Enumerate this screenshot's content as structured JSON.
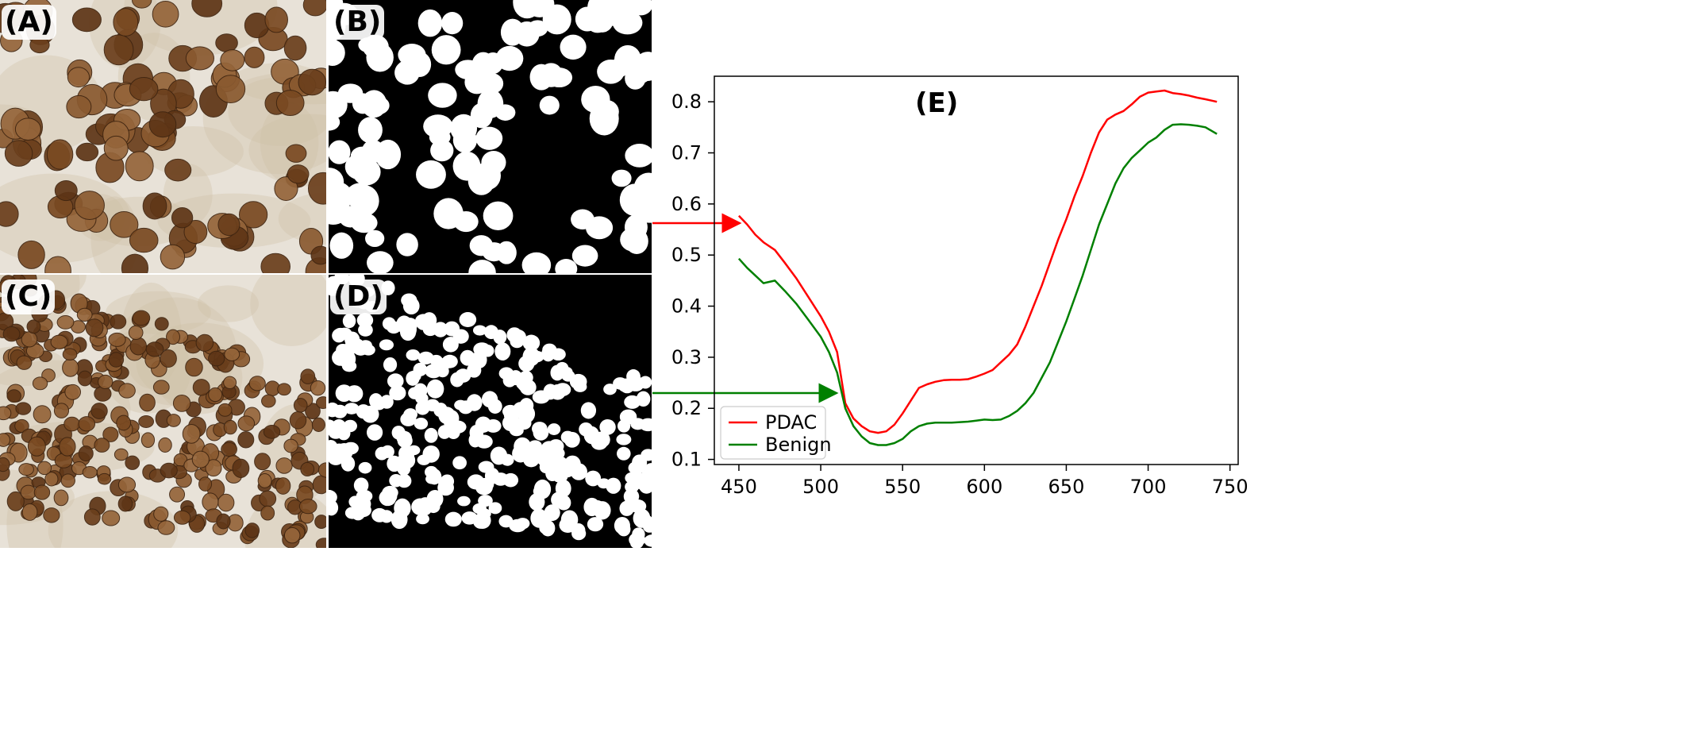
{
  "panels": {
    "a_label": "(A)",
    "b_label": "(B)",
    "c_label": "(C)",
    "d_label": "(D)",
    "e_label": "(E)"
  },
  "colors": {
    "pdac": "#ff0000",
    "benign": "#008000",
    "nucleus_brown": "#7a4a22",
    "stain_bg": "#e8e2d8",
    "mask_bg": "#000000",
    "mask_fg": "#ffffff"
  },
  "chart_data": {
    "type": "line",
    "title": "",
    "xlabel": "",
    "ylabel": "",
    "xlim": [
      435,
      755
    ],
    "ylim": [
      0.09,
      0.85
    ],
    "x_ticks": [
      450,
      500,
      550,
      600,
      650,
      700,
      750
    ],
    "y_ticks": [
      0.1,
      0.2,
      0.3,
      0.4,
      0.5,
      0.6,
      0.7,
      0.8
    ],
    "legend_position": "lower-left",
    "grid": false,
    "series": [
      {
        "name": "PDAC",
        "color": "#ff0000",
        "x": [
          450,
          455,
          460,
          465,
          472,
          478,
          485,
          492,
          500,
          505,
          510,
          515,
          520,
          525,
          530,
          535,
          540,
          545,
          550,
          555,
          560,
          565,
          570,
          575,
          580,
          585,
          590,
          595,
          600,
          605,
          610,
          615,
          620,
          625,
          630,
          635,
          640,
          645,
          650,
          655,
          660,
          665,
          670,
          675,
          680,
          685,
          690,
          695,
          700,
          705,
          710,
          715,
          720,
          725,
          730,
          735,
          742
        ],
        "values": [
          0.577,
          0.56,
          0.54,
          0.525,
          0.51,
          0.485,
          0.455,
          0.42,
          0.38,
          0.35,
          0.31,
          0.21,
          0.18,
          0.165,
          0.155,
          0.152,
          0.155,
          0.168,
          0.19,
          0.215,
          0.24,
          0.247,
          0.252,
          0.255,
          0.256,
          0.256,
          0.257,
          0.262,
          0.268,
          0.275,
          0.29,
          0.305,
          0.325,
          0.36,
          0.4,
          0.44,
          0.485,
          0.53,
          0.57,
          0.615,
          0.655,
          0.7,
          0.74,
          0.765,
          0.775,
          0.782,
          0.795,
          0.81,
          0.818,
          0.82,
          0.822,
          0.817,
          0.815,
          0.812,
          0.808,
          0.805,
          0.8
        ]
      },
      {
        "name": "Benign",
        "color": "#008000",
        "x": [
          450,
          455,
          460,
          465,
          472,
          478,
          485,
          492,
          500,
          505,
          510,
          515,
          520,
          525,
          530,
          535,
          540,
          545,
          550,
          555,
          560,
          565,
          570,
          575,
          580,
          585,
          590,
          595,
          600,
          605,
          610,
          615,
          620,
          625,
          630,
          635,
          640,
          645,
          650,
          655,
          660,
          665,
          670,
          675,
          680,
          685,
          690,
          695,
          700,
          705,
          710,
          715,
          720,
          725,
          730,
          735,
          742
        ],
        "values": [
          0.493,
          0.475,
          0.46,
          0.445,
          0.45,
          0.43,
          0.405,
          0.375,
          0.34,
          0.31,
          0.27,
          0.2,
          0.165,
          0.145,
          0.132,
          0.128,
          0.128,
          0.132,
          0.14,
          0.155,
          0.165,
          0.17,
          0.172,
          0.172,
          0.172,
          0.173,
          0.174,
          0.176,
          0.178,
          0.177,
          0.178,
          0.185,
          0.195,
          0.21,
          0.23,
          0.26,
          0.29,
          0.33,
          0.37,
          0.415,
          0.46,
          0.51,
          0.56,
          0.6,
          0.64,
          0.67,
          0.69,
          0.705,
          0.72,
          0.73,
          0.745,
          0.755,
          0.756,
          0.755,
          0.753,
          0.75,
          0.737
        ]
      }
    ]
  }
}
